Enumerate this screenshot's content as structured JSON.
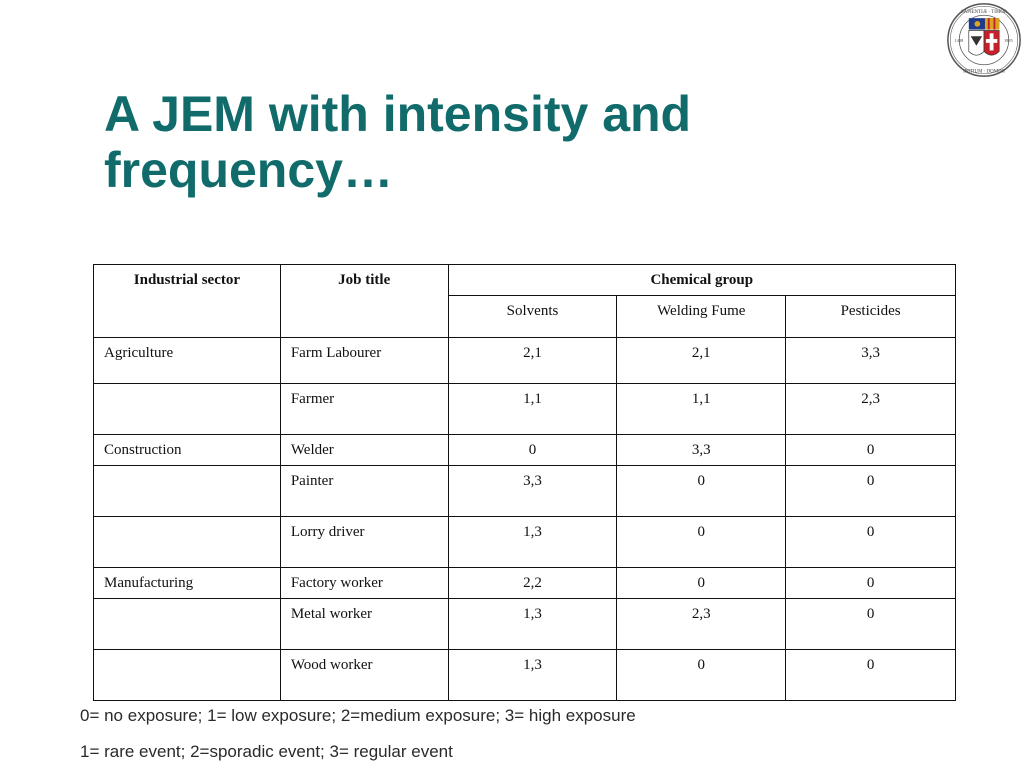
{
  "slide": {
    "title_line1": "A JEM with intensity and",
    "title_line2": "frequency…"
  },
  "seal": {
    "text_top": "SAPIENTIÆ · TIMOR",
    "text_bottom": "INITIUM · DOMINI",
    "year_left": "1498",
    "year_right": "1995",
    "colors": {
      "ring": "#555555",
      "red": "#c8202a",
      "gold": "#d9a521",
      "blue": "#1e3a8a"
    }
  },
  "table": {
    "headers": {
      "sector": "Industrial sector",
      "job": "Job title",
      "group": "Chemical group",
      "chemicals": [
        "Solvents",
        "Welding Fume",
        "Pesticides"
      ]
    },
    "rows": [
      {
        "sector": "Agriculture",
        "job": "Farm Labourer",
        "values": [
          "2,1",
          "2,1",
          "3,3"
        ]
      },
      {
        "sector": "",
        "job": "Farmer",
        "values": [
          "1,1",
          "1,1",
          "2,3"
        ]
      },
      {
        "sector": "Construction",
        "job": "Welder",
        "values": [
          "0",
          "3,3",
          "0"
        ]
      },
      {
        "sector": "",
        "job": "Painter",
        "values": [
          "3,3",
          "0",
          "0"
        ]
      },
      {
        "sector": "",
        "job": "Lorry driver",
        "values": [
          "1,3",
          "0",
          "0"
        ]
      },
      {
        "sector": "Manufacturing",
        "job": "Factory worker",
        "values": [
          "2,2",
          "0",
          "0"
        ]
      },
      {
        "sector": "",
        "job": "Metal worker",
        "values": [
          "1,3",
          "2,3",
          "0"
        ]
      },
      {
        "sector": "",
        "job": "Wood worker",
        "values": [
          "1,3",
          "0",
          "0"
        ]
      }
    ]
  },
  "notes": {
    "intensity": "0= no exposure; 1= low exposure; 2=medium exposure; 3= high exposure",
    "frequency": "1= rare event; 2=sporadic event; 3= regular event"
  },
  "colors": {
    "title": "#116b6b",
    "text": "#111111",
    "border": "#111111"
  }
}
